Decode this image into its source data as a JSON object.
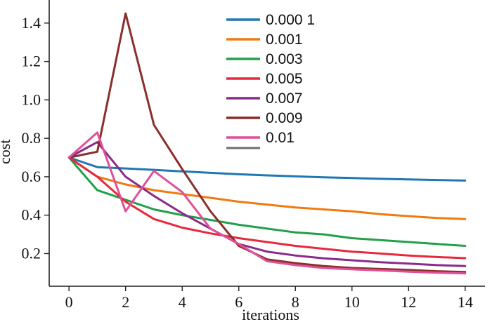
{
  "chart_data": {
    "type": "line",
    "xlabel": "iterations",
    "ylabel": "cost",
    "xlim": [
      -0.7,
      14.7
    ],
    "ylim": [
      0.03,
      1.52
    ],
    "x_ticks": [
      0,
      2,
      4,
      6,
      8,
      10,
      12,
      14
    ],
    "y_ticks": [
      0.2,
      0.4,
      0.6,
      0.8,
      1.0,
      1.2,
      1.4
    ],
    "x_tick_labels": [
      "0",
      "2",
      "4",
      "6",
      "8",
      "10",
      "12",
      "14"
    ],
    "y_tick_labels": [
      "0.2",
      "0.4",
      "0.6",
      "0.8",
      "1.0",
      "1.2",
      "1.4"
    ],
    "grid": false,
    "legend_position": "top-center",
    "series": [
      {
        "name": "0.000 1",
        "color": "#1f77b4",
        "x": [
          0,
          1,
          2,
          3,
          4,
          5,
          6,
          7,
          8,
          9,
          10,
          11,
          12,
          13,
          14
        ],
        "y": [
          0.7,
          0.65,
          0.643,
          0.636,
          0.628,
          0.62,
          0.613,
          0.607,
          0.602,
          0.597,
          0.593,
          0.589,
          0.586,
          0.583,
          0.58
        ]
      },
      {
        "name": "0.001",
        "color": "#f07a10",
        "x": [
          0,
          1,
          2,
          3,
          4,
          5,
          6,
          7,
          8,
          9,
          10,
          11,
          12,
          13,
          14
        ],
        "y": [
          0.7,
          0.6,
          0.56,
          0.53,
          0.51,
          0.49,
          0.47,
          0.455,
          0.44,
          0.43,
          0.42,
          0.405,
          0.395,
          0.385,
          0.38
        ]
      },
      {
        "name": "0.003",
        "color": "#21a04a",
        "x": [
          0,
          1,
          2,
          3,
          4,
          5,
          6,
          7,
          8,
          9,
          10,
          11,
          12,
          13,
          14
        ],
        "y": [
          0.7,
          0.53,
          0.48,
          0.43,
          0.4,
          0.375,
          0.35,
          0.33,
          0.31,
          0.3,
          0.28,
          0.27,
          0.26,
          0.25,
          0.24
        ]
      },
      {
        "name": "0.005",
        "color": "#e8283c",
        "x": [
          0,
          1,
          2,
          3,
          4,
          5,
          6,
          7,
          8,
          9,
          10,
          11,
          12,
          13,
          14
        ],
        "y": [
          0.7,
          0.6,
          0.47,
          0.38,
          0.335,
          0.305,
          0.28,
          0.26,
          0.24,
          0.225,
          0.21,
          0.2,
          0.19,
          0.182,
          0.176
        ]
      },
      {
        "name": "0.007",
        "color": "#8a2b8a",
        "x": [
          0,
          1,
          2,
          3,
          4,
          5,
          6,
          7,
          8,
          9,
          10,
          11,
          12,
          13,
          14
        ],
        "y": [
          0.7,
          0.78,
          0.6,
          0.5,
          0.41,
          0.33,
          0.25,
          0.21,
          0.19,
          0.175,
          0.165,
          0.155,
          0.148,
          0.14,
          0.135
        ]
      },
      {
        "name": "0.009",
        "color": "#8b2e2a",
        "x": [
          0,
          1,
          2,
          3,
          4,
          5,
          6,
          7,
          8,
          9,
          10,
          11,
          12,
          13,
          14
        ],
        "y": [
          0.7,
          0.73,
          1.45,
          0.87,
          0.64,
          0.42,
          0.24,
          0.17,
          0.15,
          0.135,
          0.125,
          0.12,
          0.115,
          0.108,
          0.104
        ]
      },
      {
        "name": "0.01",
        "color": "#e0509a",
        "x": [
          0,
          1,
          2,
          3,
          4,
          5,
          6,
          7,
          8,
          9,
          10,
          11,
          12,
          13,
          14
        ],
        "y": [
          0.7,
          0.83,
          0.42,
          0.63,
          0.52,
          0.33,
          0.25,
          0.16,
          0.14,
          0.125,
          0.118,
          0.112,
          0.106,
          0.1,
          0.097
        ]
      }
    ],
    "legend_extra_swatch_color": "#6e6e6e"
  }
}
